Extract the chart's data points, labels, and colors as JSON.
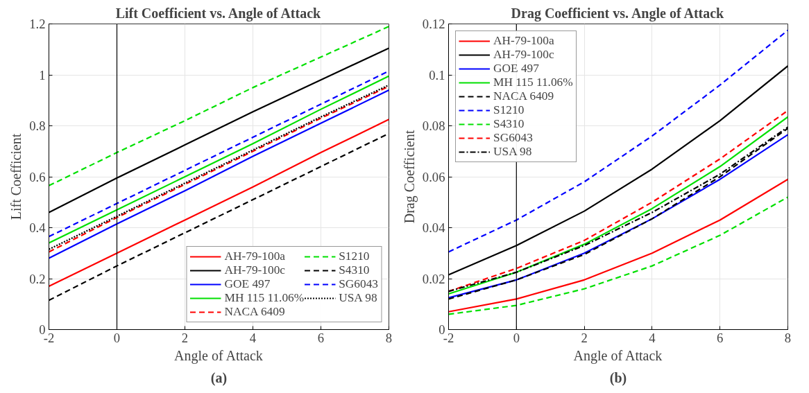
{
  "chart_data": [
    {
      "type": "line",
      "title": "Lift Coefficient vs. Angle of Attack",
      "xlabel": "Angle of Attack",
      "ylabel": "Lift Coefficient",
      "annotations": [
        "(a)"
      ],
      "x": [
        -2,
        0,
        2,
        4,
        6,
        8
      ],
      "xlim": [
        -2,
        8
      ],
      "xticks": [
        -2,
        0,
        2,
        4,
        6,
        8
      ],
      "ylim": [
        0,
        1.2
      ],
      "yticks": [
        0,
        0.2,
        0.4,
        0.6,
        0.8,
        1,
        1.2
      ],
      "grid": true,
      "legend": "bottom right",
      "ref_lines": [
        {
          "axis": "x",
          "value": 0,
          "color": "#000000"
        }
      ],
      "series": [
        {
          "name": "AH-79-100a",
          "color": "#ff0000",
          "line_style": "solid",
          "values": [
            0.17,
            0.3,
            0.43,
            0.56,
            0.695,
            0.825
          ]
        },
        {
          "name": "AH-79-100c",
          "color": "#000000",
          "line_style": "solid",
          "values": [
            0.46,
            0.595,
            0.725,
            0.855,
            0.98,
            1.105
          ]
        },
        {
          "name": "GOE 497",
          "color": "#0000ff",
          "line_style": "solid",
          "values": [
            0.28,
            0.415,
            0.545,
            0.68,
            0.81,
            0.94
          ]
        },
        {
          "name": "MH 115 11.06%",
          "color": "#00e000",
          "line_style": "solid",
          "values": [
            0.34,
            0.47,
            0.6,
            0.73,
            0.865,
            0.995
          ]
        },
        {
          "name": "NACA 6409",
          "color": "#ff0000",
          "line_style": "dashed",
          "values": [
            0.305,
            0.44,
            0.57,
            0.7,
            0.83,
            0.955
          ]
        },
        {
          "name": "S1210",
          "color": "#00e000",
          "line_style": "dashed",
          "values": [
            0.565,
            0.695,
            0.82,
            0.95,
            1.07,
            1.19
          ]
        },
        {
          "name": "S4310",
          "color": "#000000",
          "line_style": "dashed",
          "values": [
            0.115,
            0.25,
            0.38,
            0.51,
            0.64,
            0.77
          ]
        },
        {
          "name": "SG6043",
          "color": "#0000ff",
          "line_style": "dashed",
          "values": [
            0.365,
            0.495,
            0.625,
            0.755,
            0.885,
            1.015
          ]
        },
        {
          "name": "USA 98",
          "color": "#000000",
          "line_style": "dotted",
          "values": [
            0.315,
            0.445,
            0.575,
            0.705,
            0.835,
            0.96
          ]
        }
      ]
    },
    {
      "type": "line",
      "title": "Drag Coefficient vs. Angle of Attack",
      "xlabel": "Angle of Attack",
      "ylabel": "Drag Coefficient",
      "annotations": [
        "(b)"
      ],
      "x": [
        -2,
        0,
        2,
        4,
        6,
        8
      ],
      "xlim": [
        -2,
        8
      ],
      "xticks": [
        -2,
        0,
        2,
        4,
        6,
        8
      ],
      "ylim": [
        0,
        0.12
      ],
      "yticks": [
        0,
        0.02,
        0.04,
        0.06,
        0.08,
        0.1,
        0.12
      ],
      "grid": true,
      "legend": "top left",
      "ref_lines": [
        {
          "axis": "x",
          "value": 0,
          "color": "#000000"
        }
      ],
      "series": [
        {
          "name": "AH-79-100a",
          "color": "#ff0000",
          "line_style": "solid",
          "values": [
            0.007,
            0.012,
            0.0195,
            0.03,
            0.043,
            0.059
          ]
        },
        {
          "name": "AH-79-100c",
          "color": "#000000",
          "line_style": "solid",
          "values": [
            0.0215,
            0.033,
            0.0465,
            0.063,
            0.082,
            0.1035
          ]
        },
        {
          "name": "GOE 497",
          "color": "#0000ff",
          "line_style": "solid",
          "values": [
            0.0125,
            0.0195,
            0.03,
            0.0435,
            0.059,
            0.0765
          ]
        },
        {
          "name": "MH 115 11.06%",
          "color": "#00e000",
          "line_style": "solid",
          "values": [
            0.014,
            0.0225,
            0.0335,
            0.0475,
            0.064,
            0.0835
          ]
        },
        {
          "name": "NACA 6409",
          "color": "#000000",
          "line_style": "dashed",
          "values": [
            0.012,
            0.0195,
            0.0295,
            0.0435,
            0.06,
            0.079
          ]
        },
        {
          "name": "S1210",
          "color": "#0000ff",
          "line_style": "dashed",
          "values": [
            0.0305,
            0.043,
            0.058,
            0.076,
            0.096,
            0.1175
          ]
        },
        {
          "name": "S4310",
          "color": "#00e000",
          "line_style": "dashed",
          "values": [
            0.006,
            0.0095,
            0.016,
            0.025,
            0.037,
            0.052
          ]
        },
        {
          "name": "SG6043",
          "color": "#ff0000",
          "line_style": "dashed",
          "values": [
            0.015,
            0.024,
            0.035,
            0.05,
            0.067,
            0.086
          ]
        },
        {
          "name": "USA 98",
          "color": "#000000",
          "line_style": "dashdot",
          "values": [
            0.015,
            0.0225,
            0.033,
            0.046,
            0.061,
            0.0795
          ]
        }
      ]
    }
  ]
}
